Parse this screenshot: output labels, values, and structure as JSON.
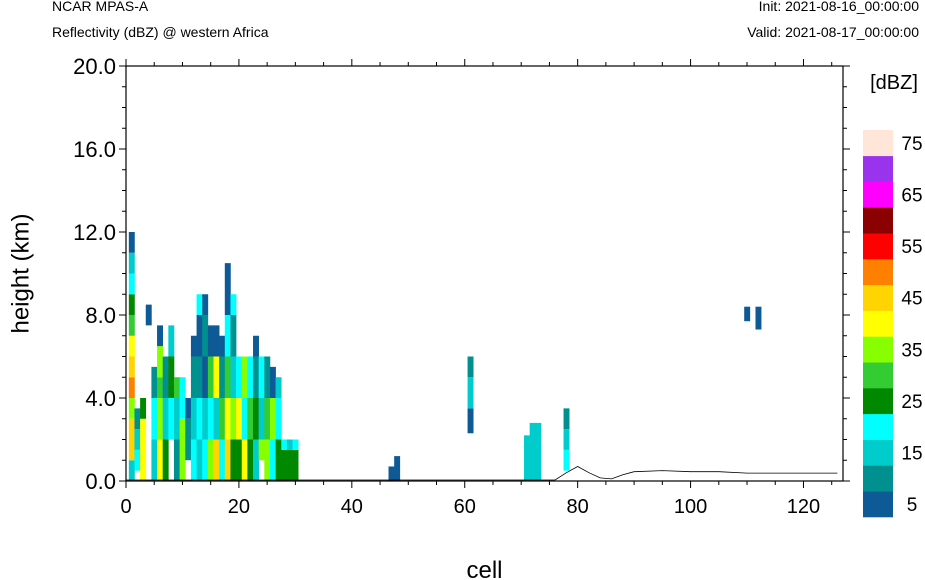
{
  "header": {
    "title_left": "NCAR MPAS-A",
    "subtitle_left": "Reflectivity (dBZ) @ western Africa",
    "title_right": "Init: 2021-08-16_00:00:00",
    "subtitle_right": "Valid: 2021-08-17_00:00:00"
  },
  "chart_data": {
    "type": "heatmap",
    "xlabel": "cell",
    "ylabel": "height (km)",
    "xlim": [
      0,
      127
    ],
    "ylim": [
      0,
      20
    ],
    "x_ticks": [
      "0",
      "20",
      "40",
      "60",
      "80",
      "100",
      "120"
    ],
    "y_ticks": [
      "0.0",
      "4.0",
      "8.0",
      "12.0",
      "16.0",
      "20.0"
    ],
    "colorbar": {
      "unit_label": "[dBZ]",
      "levels": [
        5,
        10,
        15,
        20,
        25,
        30,
        35,
        40,
        45,
        50,
        55,
        60,
        65,
        70,
        75
      ],
      "tick_labels": [
        "5",
        "15",
        "25",
        "35",
        "45",
        "55",
        "65",
        "75"
      ],
      "colors": [
        "#0e5a96",
        "#009090",
        "#00cccc",
        "#00ffff",
        "#008800",
        "#33cc33",
        "#88ff00",
        "#ffff00",
        "#ffd400",
        "#ff8000",
        "#ff0000",
        "#8b0000",
        "#ff00ff",
        "#9933ee",
        "#ffe6d9"
      ]
    },
    "terrain": [
      [
        0,
        0.05
      ],
      [
        10,
        0.05
      ],
      [
        20,
        0.05
      ],
      [
        30,
        0.05
      ],
      [
        40,
        0.05
      ],
      [
        50,
        0.05
      ],
      [
        60,
        0.05
      ],
      [
        70,
        0.05
      ],
      [
        76,
        0.05
      ],
      [
        78,
        0.4
      ],
      [
        80,
        0.7
      ],
      [
        82,
        0.4
      ],
      [
        84,
        0.15
      ],
      [
        86,
        0.1
      ],
      [
        88,
        0.3
      ],
      [
        90,
        0.45
      ],
      [
        95,
        0.5
      ],
      [
        100,
        0.45
      ],
      [
        105,
        0.45
      ],
      [
        110,
        0.38
      ],
      [
        115,
        0.38
      ],
      [
        120,
        0.38
      ],
      [
        126,
        0.38
      ]
    ],
    "columns": [
      {
        "x": 1,
        "segments": [
          [
            0,
            1,
            15
          ],
          [
            1,
            2,
            45
          ],
          [
            2,
            3,
            45
          ],
          [
            3,
            4,
            35
          ],
          [
            4,
            5,
            50
          ],
          [
            5,
            6,
            45
          ],
          [
            6,
            7,
            40
          ],
          [
            7,
            8,
            30
          ],
          [
            8,
            9,
            25
          ],
          [
            9,
            10,
            20
          ],
          [
            10,
            11,
            15
          ],
          [
            11,
            12,
            5
          ]
        ]
      },
      {
        "x": 2,
        "segments": [
          [
            0.5,
            1.5,
            20
          ],
          [
            1.5,
            2.5,
            15
          ],
          [
            2.5,
            3.5,
            10
          ]
        ]
      },
      {
        "x": 3,
        "segments": [
          [
            0,
            3,
            40
          ],
          [
            3,
            4,
            25
          ]
        ]
      },
      {
        "x": 4,
        "segments": [
          [
            7.5,
            8.5,
            5
          ]
        ]
      },
      {
        "x": 5,
        "segments": [
          [
            0,
            2,
            15
          ],
          [
            2,
            4,
            20
          ],
          [
            4,
            5.5,
            10
          ]
        ]
      },
      {
        "x": 6,
        "segments": [
          [
            0,
            2,
            40
          ],
          [
            2,
            4,
            35
          ],
          [
            4,
            5,
            30
          ],
          [
            5,
            6.5,
            35
          ],
          [
            6.5,
            7.5,
            5
          ]
        ]
      },
      {
        "x": 7,
        "segments": [
          [
            0,
            2,
            25
          ],
          [
            2,
            4,
            15
          ],
          [
            4,
            6,
            10
          ]
        ]
      },
      {
        "x": 8,
        "segments": [
          [
            2,
            4,
            20
          ],
          [
            4,
            6,
            25
          ],
          [
            6,
            7.5,
            15
          ]
        ]
      },
      {
        "x": 9,
        "segments": [
          [
            0,
            2,
            10
          ],
          [
            2,
            4,
            15
          ],
          [
            4,
            5,
            30
          ]
        ]
      },
      {
        "x": 10,
        "segments": [
          [
            0,
            3,
            35
          ],
          [
            3,
            5,
            20
          ]
        ]
      },
      {
        "x": 11,
        "segments": [
          [
            1,
            3,
            10
          ],
          [
            3,
            4,
            5
          ]
        ]
      },
      {
        "x": 12,
        "segments": [
          [
            0,
            2,
            20
          ],
          [
            2,
            4,
            15
          ],
          [
            4,
            6,
            10
          ],
          [
            6,
            7,
            5
          ]
        ]
      },
      {
        "x": 13,
        "segments": [
          [
            0,
            2,
            15
          ],
          [
            2,
            4,
            20
          ],
          [
            4,
            6,
            10
          ],
          [
            6,
            8,
            5
          ],
          [
            8,
            9,
            20
          ]
        ]
      },
      {
        "x": 14,
        "segments": [
          [
            0,
            2,
            20
          ],
          [
            2,
            4,
            15
          ],
          [
            4,
            6,
            5
          ],
          [
            6,
            8,
            10
          ],
          [
            8,
            9,
            5
          ]
        ]
      },
      {
        "x": 15,
        "segments": [
          [
            0,
            2,
            35
          ],
          [
            2,
            4,
            20
          ],
          [
            4,
            6,
            30
          ],
          [
            6,
            7.5,
            5
          ]
        ]
      },
      {
        "x": 16,
        "segments": [
          [
            0,
            2,
            45
          ],
          [
            2,
            4,
            15
          ],
          [
            4,
            6,
            40
          ],
          [
            6,
            7.5,
            5
          ]
        ]
      },
      {
        "x": 17,
        "segments": [
          [
            0,
            2,
            20
          ],
          [
            2,
            4,
            30
          ],
          [
            4,
            6,
            10
          ],
          [
            6,
            7,
            5
          ]
        ]
      },
      {
        "x": 18,
        "segments": [
          [
            0,
            2,
            45
          ],
          [
            2,
            4,
            40
          ],
          [
            4,
            6,
            30
          ],
          [
            6,
            8,
            20
          ],
          [
            8,
            10.5,
            5
          ]
        ]
      },
      {
        "x": 19,
        "segments": [
          [
            0,
            2,
            25
          ],
          [
            2,
            4,
            35
          ],
          [
            4,
            6,
            15
          ],
          [
            6,
            8,
            10
          ],
          [
            8,
            9,
            20
          ]
        ]
      },
      {
        "x": 20,
        "segments": [
          [
            0,
            2,
            25
          ],
          [
            2,
            4,
            40
          ],
          [
            4,
            6,
            20
          ]
        ]
      },
      {
        "x": 21,
        "segments": [
          [
            0,
            2,
            40
          ],
          [
            2,
            4,
            20
          ],
          [
            4,
            6,
            35
          ]
        ]
      },
      {
        "x": 22,
        "segments": [
          [
            0,
            2,
            25
          ],
          [
            2,
            4,
            30
          ],
          [
            4,
            6,
            20
          ]
        ]
      },
      {
        "x": 23,
        "segments": [
          [
            0,
            2,
            15
          ],
          [
            2,
            4,
            25
          ],
          [
            4,
            6,
            10
          ],
          [
            6,
            7,
            5
          ]
        ]
      },
      {
        "x": 24,
        "segments": [
          [
            1,
            2,
            35
          ],
          [
            2,
            4,
            15
          ],
          [
            4,
            6,
            20
          ]
        ]
      },
      {
        "x": 25,
        "segments": [
          [
            0,
            2,
            35
          ],
          [
            2,
            4,
            30
          ],
          [
            4,
            6,
            10
          ]
        ]
      },
      {
        "x": 26,
        "segments": [
          [
            0,
            2,
            20
          ],
          [
            2,
            4,
            35
          ],
          [
            4,
            5.5,
            5
          ]
        ]
      },
      {
        "x": 27,
        "segments": [
          [
            0,
            2,
            25
          ],
          [
            2,
            4,
            20
          ],
          [
            4,
            5,
            15
          ]
        ]
      },
      {
        "x": 28,
        "segments": [
          [
            0,
            1.5,
            25
          ],
          [
            1.5,
            2,
            20
          ]
        ]
      },
      {
        "x": 29,
        "segments": [
          [
            0,
            1.5,
            25
          ],
          [
            1.5,
            2,
            15
          ]
        ]
      },
      {
        "x": 30,
        "segments": [
          [
            0,
            1.5,
            25
          ],
          [
            1.5,
            2,
            20
          ]
        ]
      },
      {
        "x": 47,
        "segments": [
          [
            0,
            0.7,
            5
          ]
        ]
      },
      {
        "x": 48,
        "segments": [
          [
            0,
            1.2,
            5
          ]
        ]
      },
      {
        "x": 61,
        "segments": [
          [
            2.3,
            3.5,
            5
          ],
          [
            3.5,
            5,
            15
          ],
          [
            5,
            6,
            10
          ]
        ]
      },
      {
        "x": 71,
        "segments": [
          [
            0,
            2.2,
            15
          ]
        ]
      },
      {
        "x": 72,
        "segments": [
          [
            0,
            2.8,
            15
          ]
        ]
      },
      {
        "x": 73,
        "segments": [
          [
            0,
            2.8,
            15
          ]
        ]
      },
      {
        "x": 78,
        "segments": [
          [
            0.5,
            1.5,
            20
          ],
          [
            1.5,
            2.5,
            15
          ],
          [
            2.5,
            3.5,
            10
          ]
        ]
      },
      {
        "x": 110,
        "segments": [
          [
            7.7,
            8.4,
            5
          ]
        ]
      },
      {
        "x": 112,
        "segments": [
          [
            7.3,
            8.4,
            5
          ]
        ]
      }
    ]
  }
}
